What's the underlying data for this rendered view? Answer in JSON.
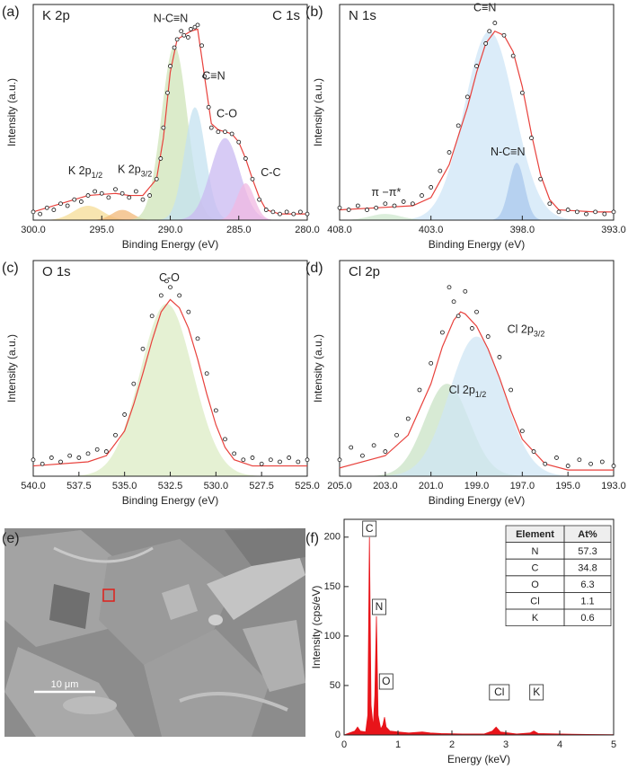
{
  "chart_data": [
    {
      "type": "xps",
      "panel": "(a)",
      "title": "K 2p",
      "title_right": "C 1s",
      "x_label": "Binding Energy (eV)",
      "y_label": "Intensity (a.u.)",
      "xlim": [
        300,
        280
      ],
      "xticks": [
        {
          "value": 300,
          "label": "300.0"
        },
        {
          "value": 295,
          "label": "295.0"
        },
        {
          "value": 290,
          "label": "290.0"
        },
        {
          "value": 285,
          "label": "285.0"
        },
        {
          "value": 280,
          "label": "280.0"
        }
      ],
      "ylim": [
        0,
        105
      ],
      "points": {
        "x": [
          300,
          299.5,
          299,
          298.5,
          298,
          297.5,
          297,
          296.5,
          296,
          295.5,
          295,
          294.5,
          294,
          293.5,
          293,
          292.5,
          292,
          291.5,
          291,
          290.7,
          290.5,
          290.2,
          290,
          289.7,
          289.5,
          289.2,
          289,
          288.7,
          288.5,
          288.2,
          288,
          287.7,
          287.5,
          287.2,
          287,
          286.5,
          286,
          285.5,
          285,
          284.5,
          284,
          283.5,
          283,
          282.5,
          282,
          281.5,
          281,
          280.5,
          280
        ],
        "y": [
          4,
          3,
          6,
          5,
          8,
          7,
          10,
          9,
          12,
          14,
          13,
          11,
          15,
          13,
          11,
          14,
          10,
          12,
          20,
          30,
          45,
          62,
          75,
          84,
          88,
          92,
          90,
          89,
          93,
          94,
          95,
          85,
          70,
          55,
          45,
          43,
          43,
          42,
          38,
          30,
          20,
          10,
          5,
          4,
          3,
          4,
          3,
          4,
          3
        ]
      },
      "fit": {
        "color": "#e8413c",
        "x": [
          300,
          298,
          296,
          294,
          293,
          292,
          291,
          290.5,
          290,
          289.5,
          289,
          288.5,
          288,
          287.5,
          287,
          286.5,
          286,
          285.5,
          285,
          284.5,
          284,
          283.5,
          283,
          282,
          280
        ],
        "y": [
          4,
          8,
          12,
          13,
          12,
          12,
          20,
          40,
          72,
          88,
          90,
          92,
          93,
          70,
          47,
          44,
          43,
          42,
          38,
          30,
          20,
          11,
          5,
          3,
          3
        ]
      },
      "components": [
        {
          "label": "K 2p",
          "label_sub": "1/2",
          "center": 296,
          "height": 7,
          "fwhm": 2.5,
          "color": "#f5dc96"
        },
        {
          "label": "K 2p",
          "label_sub": "3/2",
          "center": 293.5,
          "height": 5,
          "fwhm": 1.8,
          "color": "#f2b878"
        },
        {
          "label": "N-C≡N",
          "center": 289.7,
          "height": 85,
          "fwhm": 2.2,
          "color": "#cfe4b8"
        },
        {
          "label": "C≡N",
          "center": 288.2,
          "height": 55,
          "fwhm": 1.8,
          "color": "#c4e2f0"
        },
        {
          "label": "C-O",
          "center": 286,
          "height": 40,
          "fwhm": 2.5,
          "color": "#c9b9f2"
        },
        {
          "label": "C-C",
          "center": 284.5,
          "height": 18,
          "fwhm": 1.5,
          "color": "#f0b8e2"
        }
      ]
    },
    {
      "type": "xps",
      "panel": "(b)",
      "title": "N 1s",
      "x_label": "Binding Energy (eV)",
      "y_label": "Intensity (a.u.)",
      "xlim": [
        408,
        393
      ],
      "xticks": [
        {
          "value": 408,
          "label": "408.0"
        },
        {
          "value": 403,
          "label": "403.0"
        },
        {
          "value": 398,
          "label": "398.0"
        },
        {
          "value": 393,
          "label": "393.0"
        }
      ],
      "ylim": [
        0,
        105
      ],
      "points": {
        "x": [
          408,
          407.5,
          407,
          406.5,
          406,
          405.5,
          405,
          404.5,
          404,
          403.5,
          403,
          402.5,
          402,
          401.5,
          401,
          400.5,
          400,
          399.8,
          399.5,
          399,
          398.5,
          398,
          397.5,
          397,
          396.5,
          396,
          395.5,
          395,
          394.5,
          394,
          393.5,
          393
        ],
        "y": [
          6,
          5,
          7,
          5,
          6,
          8,
          7,
          9,
          8,
          12,
          16,
          24,
          33,
          46,
          60,
          75,
          86,
          92,
          96,
          90,
          80,
          62,
          40,
          20,
          8,
          4,
          5,
          4,
          3,
          4,
          3,
          4
        ]
      },
      "fit": {
        "color": "#e8413c",
        "x": [
          408,
          406,
          404,
          403,
          402,
          401,
          400.5,
          400,
          399.5,
          399,
          398.5,
          398,
          397.5,
          397,
          396.5,
          396,
          394,
          393
        ],
        "y": [
          5,
          6,
          7,
          11,
          27,
          55,
          72,
          86,
          92,
          90,
          82,
          65,
          42,
          22,
          10,
          5,
          4,
          4
        ]
      },
      "components": [
        {
          "label": "C≡N",
          "center": 399.8,
          "height": 92,
          "fwhm": 3.2,
          "color": "#cfe6f7"
        },
        {
          "label": "N-C≡N",
          "center": 398.3,
          "height": 28,
          "fwhm": 1.0,
          "color": "#a9c8ec"
        },
        {
          "label": "π −π*",
          "center": 405.5,
          "height": 3,
          "fwhm": 2,
          "color": "#cfe8cf"
        }
      ]
    },
    {
      "type": "xps",
      "panel": "(c)",
      "title": "O 1s",
      "x_label": "Binding Energy (eV)",
      "y_label": "Intensity (a.u.)",
      "xlim": [
        540,
        525
      ],
      "xticks": [
        {
          "value": 540,
          "label": "540.0"
        },
        537.5,
        {
          "value": 535,
          "label": "535.0"
        },
        532.5,
        {
          "value": 530,
          "label": "530.0"
        },
        527.5,
        {
          "value": 525,
          "label": "525.0"
        }
      ],
      "ylim": [
        0,
        105
      ],
      "points": {
        "x": [
          540,
          539.5,
          539,
          538.5,
          538,
          537.5,
          537,
          536.5,
          536,
          535.5,
          535,
          534.5,
          534,
          533.5,
          533,
          532.7,
          532.5,
          532,
          531.5,
          531,
          530.5,
          530,
          529.5,
          529,
          528.5,
          528,
          527.5,
          527,
          526.5,
          526,
          525.5,
          525
        ],
        "y": [
          8,
          6,
          9,
          7,
          10,
          9,
          11,
          13,
          12,
          20,
          30,
          45,
          62,
          78,
          88,
          95,
          92,
          88,
          80,
          67,
          50,
          32,
          18,
          11,
          8,
          9,
          6,
          8,
          7,
          9,
          7,
          8
        ]
      },
      "fit": {
        "color": "#e8413c",
        "x": [
          540,
          537,
          536,
          535,
          534.5,
          534,
          533.5,
          533,
          532.5,
          532,
          531.5,
          531,
          530.5,
          530,
          529.5,
          529,
          528,
          525
        ],
        "y": [
          5,
          7,
          10,
          22,
          35,
          50,
          66,
          80,
          86,
          82,
          72,
          57,
          40,
          25,
          14,
          8,
          5,
          5
        ]
      },
      "components": [
        {
          "label": "C-O",
          "center": 532.7,
          "height": 84,
          "fwhm": 3.4,
          "color": "#dcecc4"
        }
      ]
    },
    {
      "type": "xps",
      "panel": "(d)",
      "title": "Cl 2p",
      "x_label": "Binding Energy (eV)",
      "y_label": "Intensity (a.u.)",
      "xlim": [
        205,
        193
      ],
      "xticks": [
        {
          "value": 205,
          "label": "205.0"
        },
        {
          "value": 203,
          "label": "203.0"
        },
        {
          "value": 201,
          "label": "201.0"
        },
        {
          "value": 199,
          "label": "199.0"
        },
        {
          "value": 197,
          "label": "197.0"
        },
        {
          "value": 195,
          "label": "195.0"
        },
        {
          "value": 193,
          "label": "193.0"
        }
      ],
      "ylim": [
        0,
        105
      ],
      "points": {
        "x": [
          205,
          204.5,
          204,
          203.5,
          203,
          202.5,
          202,
          201.5,
          201,
          200.5,
          200.2,
          200,
          199.8,
          199.5,
          199.2,
          199,
          198.5,
          198,
          197.5,
          197,
          196.5,
          196,
          195.5,
          195,
          194.5,
          194,
          193.5,
          193
        ],
        "y": [
          8,
          14,
          10,
          15,
          12,
          20,
          28,
          42,
          55,
          70,
          92,
          85,
          78,
          90,
          72,
          80,
          68,
          58,
          42,
          22,
          12,
          6,
          9,
          5,
          8,
          6,
          7,
          5
        ]
      },
      "fit": {
        "color": "#e8413c",
        "x": [
          205,
          203,
          202,
          201,
          200.5,
          200,
          199.7,
          199.5,
          199,
          198.5,
          198,
          197.5,
          197,
          196,
          195,
          193
        ],
        "y": [
          4,
          10,
          20,
          45,
          63,
          76,
          80,
          79,
          73,
          62,
          48,
          32,
          18,
          6,
          3,
          3
        ]
      },
      "components": [
        {
          "label": "Cl 2p",
          "label_sub": "1/2",
          "center": 200.3,
          "height": 45,
          "fwhm": 2.3,
          "color": "#c9e3c6"
        },
        {
          "label": "Cl 2p",
          "label_sub": "3/2",
          "center": 199,
          "height": 68,
          "fwhm": 2.8,
          "color": "#cfe6f4"
        }
      ]
    },
    {
      "type": "image",
      "panel": "(e)",
      "scale_bar_label": "10 μm"
    },
    {
      "type": "eds",
      "panel": "(f)",
      "x_label": "Energy (keV)",
      "y_label": "Intensity (cps/eV)",
      "xlim": [
        0,
        5
      ],
      "xticks": [
        0,
        1,
        2,
        3,
        4,
        5
      ],
      "ylim": [
        0,
        218
      ],
      "yticks": [
        0,
        50,
        100,
        150,
        200
      ],
      "spectrum": {
        "color": "#e8141a",
        "x": [
          0,
          0.1,
          0.2,
          0.25,
          0.3,
          0.4,
          0.44,
          0.47,
          0.5,
          0.54,
          0.57,
          0.6,
          0.63,
          0.68,
          0.72,
          0.75,
          0.78,
          0.85,
          1,
          1.2,
          1.45,
          1.6,
          1.8,
          2.2,
          2.6,
          2.75,
          2.82,
          2.9,
          3.2,
          3.45,
          3.52,
          3.6,
          4,
          4.5,
          5
        ],
        "y": [
          0,
          2,
          4,
          8,
          4,
          3,
          20,
          200,
          30,
          8,
          40,
          120,
          20,
          6,
          10,
          18,
          8,
          4,
          3,
          2,
          3,
          2,
          1.5,
          1,
          1,
          4,
          8,
          3,
          1,
          2,
          4,
          1.5,
          1,
          0.5,
          0.3
        ]
      },
      "peak_labels": [
        {
          "label": "C",
          "energy": 0.47
        },
        {
          "label": "N",
          "energy": 0.65
        },
        {
          "label": "O",
          "energy": 0.78
        },
        {
          "label": "Cl",
          "energy": 2.88
        },
        {
          "label": "K",
          "energy": 3.57
        }
      ],
      "table": {
        "header": [
          "Element",
          "At%"
        ],
        "rows": [
          [
            "N",
            57.3
          ],
          [
            "C",
            34.8
          ],
          [
            "O",
            6.3
          ],
          [
            "Cl",
            1.1
          ],
          [
            "K",
            0.6
          ]
        ]
      }
    }
  ]
}
